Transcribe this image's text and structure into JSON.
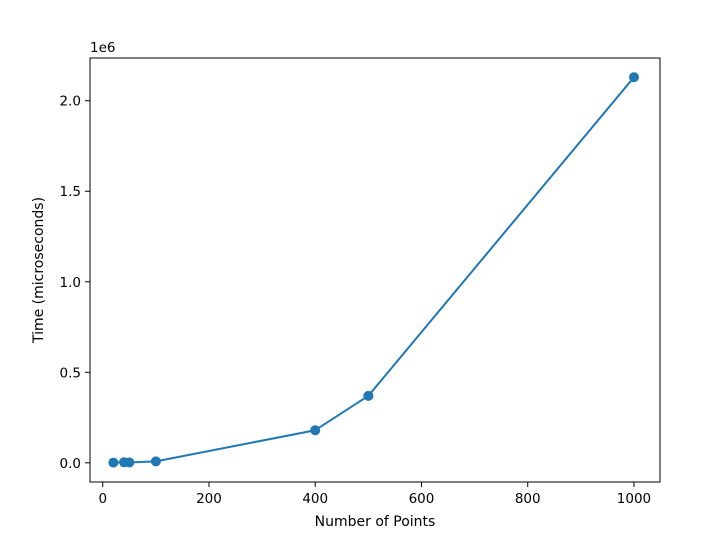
{
  "chart_data": {
    "type": "line",
    "title": "",
    "xlabel": "Number of Points",
    "ylabel": "Time (microseconds)",
    "y_offset_label": "1e6",
    "x": [
      20,
      40,
      50,
      100,
      400,
      500,
      1000
    ],
    "series": [
      {
        "values": [
          1000,
          3000,
          2000,
          8000,
          180000,
          370000,
          2130000
        ],
        "color": "#1f77b4",
        "marker": "circle"
      }
    ],
    "xlim": [
      -24,
      1049
    ],
    "ylim": [
      -106000,
      2236000
    ],
    "xticks": [
      0,
      200,
      400,
      600,
      800,
      1000
    ],
    "xtick_labels": [
      "0",
      "200",
      "400",
      "600",
      "800",
      "1000"
    ],
    "yticks": [
      0,
      500000,
      1000000,
      1500000,
      2000000
    ],
    "ytick_labels": [
      "0.0",
      "0.5",
      "1.0",
      "1.5",
      "2.0"
    ],
    "grid": false,
    "legend": "none"
  }
}
